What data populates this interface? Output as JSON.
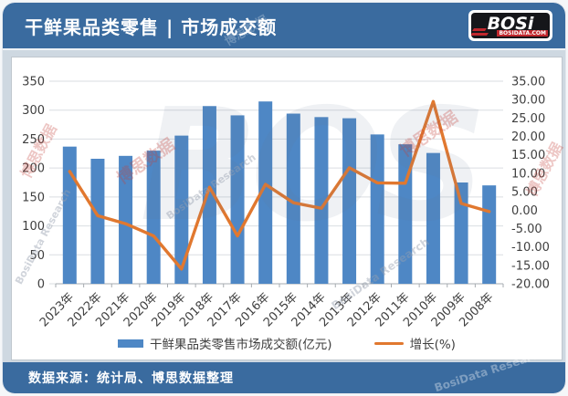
{
  "header": {
    "title": "干鲜果品类零售 | 市场成交额",
    "logo": {
      "brand": "BOSi",
      "domain": "BOSIDATA.COM"
    }
  },
  "footer": {
    "source": "数据来源：统计局、博思数据整理"
  },
  "watermark": {
    "cn": "博思数据",
    "en": "BosiData Research",
    "ghost": "BOS"
  },
  "theme": {
    "header_bg": "#3A6B9F",
    "page_bg": "#CED8E1",
    "panel_bg": "#FFFFFF",
    "bar_color": "#4E87C5",
    "line_color": "#E1782F",
    "grid_color": "#DADEE2",
    "axis_line": "#A6ABB0",
    "axis_text": "#3F3F3F"
  },
  "chart_data": {
    "type": "bar+line",
    "title": "干鲜果品类零售 | 市场成交额",
    "categories": [
      "2023年",
      "2022年",
      "2021年",
      "2020年",
      "2019年",
      "2018年",
      "2017年",
      "2016年",
      "2015年",
      "2014年",
      "2013年",
      "2012年",
      "2011年",
      "2010年",
      "2009年",
      "2008年"
    ],
    "series": [
      {
        "name": "干鲜果品类零售市场成交额(亿元)",
        "type": "bar",
        "axis": "left",
        "color": "#4E87C5",
        "values": [
          237,
          216,
          221,
          230,
          256,
          307,
          291,
          315,
          294,
          288,
          286,
          258,
          241,
          226,
          175,
          170
        ]
      },
      {
        "name": "增长(%)",
        "type": "line",
        "axis": "right",
        "color": "#E1782F",
        "values": [
          10.5,
          -1.5,
          -3.7,
          -7.0,
          -16.0,
          6.2,
          -7.0,
          7.0,
          2.0,
          0.5,
          11.5,
          7.4,
          7.3,
          29.5,
          1.8,
          -0.4
        ]
      }
    ],
    "left_axis": {
      "min": 0,
      "max": 350,
      "step": 50,
      "ticks": [
        "350",
        "300",
        "250",
        "200",
        "150",
        "100",
        "50",
        "0"
      ]
    },
    "right_axis": {
      "min": -20,
      "max": 35,
      "step": 5,
      "ticks": [
        "35.00",
        "30.00",
        "25.00",
        "20.00",
        "15.00",
        "10.00",
        "5.00",
        "0.00",
        "-5.00",
        "-10.00",
        "-15.00",
        "-20.00"
      ]
    },
    "grid": true,
    "legend_position": "bottom"
  }
}
